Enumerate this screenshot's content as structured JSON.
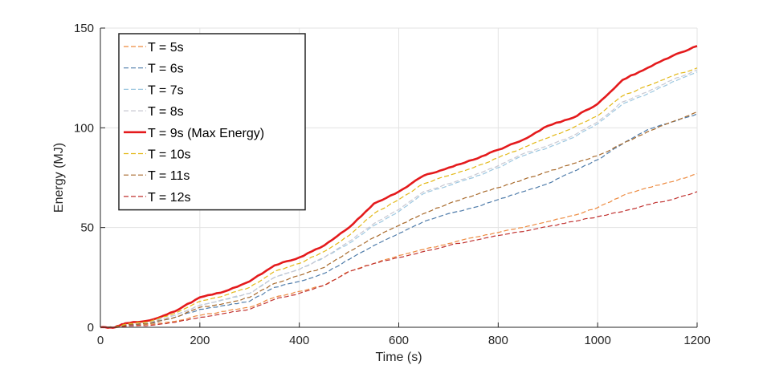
{
  "chart_data": {
    "type": "line",
    "xlabel": "Time (s)",
    "ylabel": "Energy (MJ)",
    "xlim": [
      0,
      1200
    ],
    "ylim": [
      0,
      150
    ],
    "x_ticks": [
      0,
      200,
      400,
      600,
      800,
      1000,
      1200
    ],
    "y_ticks": [
      0,
      50,
      100,
      150
    ],
    "grid": true,
    "legend_position": "top-left",
    "x": [
      0,
      30,
      50,
      100,
      150,
      200,
      250,
      300,
      350,
      400,
      450,
      500,
      550,
      600,
      650,
      700,
      750,
      800,
      850,
      900,
      950,
      1000,
      1050,
      1100,
      1150,
      1200
    ],
    "series": [
      {
        "name": "T = 5s",
        "color": "#ED8A3F",
        "style": "dashed",
        "values": [
          0,
          0,
          0.5,
          1.5,
          3,
          6,
          8,
          10,
          15,
          18,
          21,
          28,
          32,
          36,
          39,
          42,
          45,
          47.5,
          50,
          53,
          56,
          60,
          66,
          70,
          73,
          77
        ]
      },
      {
        "name": "T = 6s",
        "color": "#4F7CAA",
        "style": "dashed",
        "values": [
          0,
          0,
          1,
          2,
          5,
          9,
          11,
          13,
          20,
          23,
          27,
          34,
          41,
          47,
          53,
          57,
          60,
          64,
          68,
          72,
          78,
          84,
          92,
          99,
          103,
          107
        ]
      },
      {
        "name": "T = 7s",
        "color": "#9CC7E0",
        "style": "dashed",
        "values": [
          0,
          0,
          1.5,
          2.5,
          6,
          11,
          14,
          17,
          25,
          29,
          35,
          42,
          51,
          58,
          67,
          71,
          75,
          80,
          86,
          90,
          95,
          102,
          112,
          117,
          123,
          128
        ]
      },
      {
        "name": "T = 8s",
        "color": "#C8C8D2",
        "style": "dashed",
        "values": [
          0,
          0,
          1.5,
          2.5,
          6,
          11,
          14,
          17,
          25,
          29,
          35,
          43,
          52,
          59,
          68,
          72,
          76,
          81,
          87,
          91,
          96,
          103,
          113,
          118,
          124,
          129
        ]
      },
      {
        "name": "T = 9s (Max Energy)",
        "color": "#E41A1C",
        "style": "solid",
        "values": [
          0,
          0,
          2,
          3.5,
          8,
          15,
          18,
          23,
          31,
          35,
          41,
          50,
          62,
          68,
          76,
          80,
          84,
          89,
          94,
          101,
          105,
          112,
          124,
          130,
          136,
          141
        ]
      },
      {
        "name": "T = 10s",
        "color": "#E3B816",
        "style": "dashed",
        "values": [
          0,
          0,
          1.5,
          3,
          7,
          13,
          16,
          20,
          28,
          32,
          38,
          46,
          57,
          64,
          72,
          76,
          80,
          85,
          90,
          95,
          100,
          106,
          116,
          121,
          126,
          130
        ]
      },
      {
        "name": "T = 11s",
        "color": "#A86A2C",
        "style": "dashed",
        "values": [
          0,
          0,
          1,
          2,
          5,
          10,
          12,
          15,
          22,
          26,
          30,
          38,
          45,
          51,
          57,
          62,
          66,
          70,
          74,
          78,
          82,
          86,
          92,
          98,
          103,
          108
        ]
      },
      {
        "name": "T = 12s",
        "color": "#C0312F",
        "style": "dashed",
        "values": [
          0,
          0,
          0.5,
          1,
          2.5,
          5,
          7,
          9,
          14,
          17,
          21,
          28,
          32,
          35,
          38,
          41,
          43.5,
          46,
          48,
          50.5,
          53,
          55.5,
          58,
          61.5,
          64,
          68
        ]
      }
    ]
  }
}
